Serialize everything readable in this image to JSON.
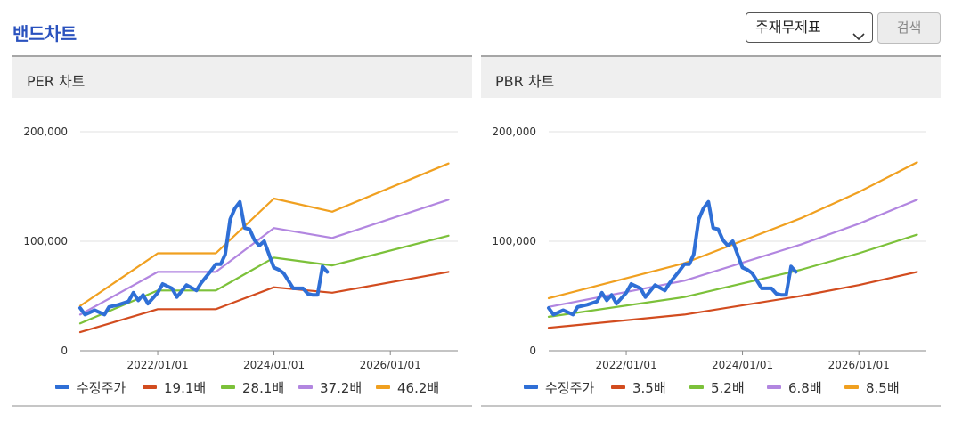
{
  "header": {
    "title": "밴드차트",
    "select_value": "주재무제표",
    "search_label": "검색"
  },
  "icons": {
    "select_chevron": "chevron-down-icon"
  },
  "colors": {
    "title": "#2a52be",
    "price": "#2f6fd6",
    "band1": "#d24c1f",
    "band2": "#7cc13a",
    "band3": "#b286e0",
    "band4": "#f0a020"
  },
  "chart_data": [
    {
      "id": "per",
      "panel_title": "PER 차트",
      "type": "line",
      "title": "",
      "xlabel": "",
      "ylabel": "",
      "xlim": [
        "2020/09/01",
        "2027/03/01"
      ],
      "ylim": [
        0,
        200000
      ],
      "yticks": [
        0,
        100000,
        200000
      ],
      "ytick_labels": [
        "0",
        "100,000",
        "200,000"
      ],
      "xticks": [
        "2022/01/01",
        "2024/01/01",
        "2026/01/01"
      ],
      "xtick_labels": [
        "2022/01/01",
        "2024/01/01",
        "2026/01/01"
      ],
      "grid": true,
      "legend_position": "bottom",
      "series": [
        {
          "name": "수정주가",
          "color": "#2f6fd6",
          "points": [
            [
              "2020/09/01",
              39000
            ],
            [
              "2020/10/01",
              33000
            ],
            [
              "2020/12/01",
              37000
            ],
            [
              "2021/02/01",
              33000
            ],
            [
              "2021/03/01",
              40000
            ],
            [
              "2021/05/01",
              42000
            ],
            [
              "2021/07/01",
              45000
            ],
            [
              "2021/08/01",
              53000
            ],
            [
              "2021/09/01",
              46000
            ],
            [
              "2021/10/01",
              51000
            ],
            [
              "2021/11/01",
              43000
            ],
            [
              "2022/01/01",
              53000
            ],
            [
              "2022/02/01",
              61000
            ],
            [
              "2022/04/01",
              57000
            ],
            [
              "2022/05/01",
              49000
            ],
            [
              "2022/07/01",
              60000
            ],
            [
              "2022/09/01",
              55000
            ],
            [
              "2022/10/01",
              62000
            ],
            [
              "2022/12/01",
              73000
            ],
            [
              "2023/01/01",
              79000
            ],
            [
              "2023/02/01",
              79000
            ],
            [
              "2023/03/01",
              88000
            ],
            [
              "2023/04/01",
              120000
            ],
            [
              "2023/05/01",
              130000
            ],
            [
              "2023/06/01",
              136000
            ],
            [
              "2023/07/01",
              112000
            ],
            [
              "2023/08/01",
              111000
            ],
            [
              "2023/09/01",
              101000
            ],
            [
              "2023/10/01",
              96000
            ],
            [
              "2023/11/01",
              100000
            ],
            [
              "2024/01/01",
              76000
            ],
            [
              "2024/02/01",
              74000
            ],
            [
              "2024/03/01",
              71000
            ],
            [
              "2024/04/01",
              64000
            ],
            [
              "2024/05/01",
              57000
            ],
            [
              "2024/06/01",
              57000
            ],
            [
              "2024/07/01",
              57000
            ],
            [
              "2024/08/01",
              52000
            ],
            [
              "2024/09/01",
              51000
            ],
            [
              "2024/10/01",
              51000
            ],
            [
              "2024/11/01",
              77000
            ],
            [
              "2024/12/01",
              72000
            ]
          ]
        },
        {
          "name": "19.1배",
          "color": "#d24c1f",
          "points": [
            [
              "2020/09/01",
              17000
            ],
            [
              "2022/01/01",
              38000
            ],
            [
              "2023/01/01",
              38000
            ],
            [
              "2024/01/01",
              58000
            ],
            [
              "2025/01/01",
              53000
            ],
            [
              "2027/01/01",
              72000
            ]
          ]
        },
        {
          "name": "28.1배",
          "color": "#7cc13a",
          "points": [
            [
              "2020/09/01",
              25000
            ],
            [
              "2022/01/01",
              55000
            ],
            [
              "2023/01/01",
              55000
            ],
            [
              "2024/01/01",
              85000
            ],
            [
              "2025/01/01",
              78000
            ],
            [
              "2027/01/01",
              105000
            ]
          ]
        },
        {
          "name": "37.2배",
          "color": "#b286e0",
          "points": [
            [
              "2020/09/01",
              33000
            ],
            [
              "2022/01/01",
              72000
            ],
            [
              "2023/01/01",
              72000
            ],
            [
              "2024/01/01",
              112000
            ],
            [
              "2025/01/01",
              103000
            ],
            [
              "2027/01/01",
              138000
            ]
          ]
        },
        {
          "name": "46.2배",
          "color": "#f0a020",
          "points": [
            [
              "2020/09/01",
              41000
            ],
            [
              "2022/01/01",
              89000
            ],
            [
              "2023/01/01",
              89000
            ],
            [
              "2024/01/01",
              139000
            ],
            [
              "2025/01/01",
              127000
            ],
            [
              "2027/01/01",
              171000
            ]
          ]
        }
      ]
    },
    {
      "id": "pbr",
      "panel_title": "PBR 차트",
      "type": "line",
      "title": "",
      "xlabel": "",
      "ylabel": "",
      "xlim": [
        "2020/09/01",
        "2027/03/01"
      ],
      "ylim": [
        0,
        200000
      ],
      "yticks": [
        0,
        100000,
        200000
      ],
      "ytick_labels": [
        "0",
        "100,000",
        "200,000"
      ],
      "xticks": [
        "2022/01/01",
        "2024/01/01",
        "2026/01/01"
      ],
      "xtick_labels": [
        "2022/01/01",
        "2024/01/01",
        "2026/01/01"
      ],
      "grid": true,
      "legend_position": "bottom",
      "series": [
        {
          "name": "수정주가",
          "color": "#2f6fd6",
          "points": [
            [
              "2020/09/01",
              39000
            ],
            [
              "2020/10/01",
              33000
            ],
            [
              "2020/12/01",
              37000
            ],
            [
              "2021/02/01",
              33000
            ],
            [
              "2021/03/01",
              40000
            ],
            [
              "2021/05/01",
              42000
            ],
            [
              "2021/07/01",
              45000
            ],
            [
              "2021/08/01",
              53000
            ],
            [
              "2021/09/01",
              46000
            ],
            [
              "2021/10/01",
              51000
            ],
            [
              "2021/11/01",
              43000
            ],
            [
              "2022/01/01",
              53000
            ],
            [
              "2022/02/01",
              61000
            ],
            [
              "2022/04/01",
              57000
            ],
            [
              "2022/05/01",
              49000
            ],
            [
              "2022/07/01",
              60000
            ],
            [
              "2022/09/01",
              55000
            ],
            [
              "2022/10/01",
              62000
            ],
            [
              "2022/12/01",
              73000
            ],
            [
              "2023/01/01",
              79000
            ],
            [
              "2023/02/01",
              79000
            ],
            [
              "2023/03/01",
              88000
            ],
            [
              "2023/04/01",
              120000
            ],
            [
              "2023/05/01",
              130000
            ],
            [
              "2023/06/01",
              136000
            ],
            [
              "2023/07/01",
              112000
            ],
            [
              "2023/08/01",
              111000
            ],
            [
              "2023/09/01",
              101000
            ],
            [
              "2023/10/01",
              96000
            ],
            [
              "2023/11/01",
              100000
            ],
            [
              "2024/01/01",
              76000
            ],
            [
              "2024/02/01",
              74000
            ],
            [
              "2024/03/01",
              71000
            ],
            [
              "2024/04/01",
              64000
            ],
            [
              "2024/05/01",
              57000
            ],
            [
              "2024/06/01",
              57000
            ],
            [
              "2024/07/01",
              57000
            ],
            [
              "2024/08/01",
              52000
            ],
            [
              "2024/09/01",
              51000
            ],
            [
              "2024/10/01",
              51000
            ],
            [
              "2024/11/01",
              77000
            ],
            [
              "2024/12/01",
              72000
            ]
          ]
        },
        {
          "name": "3.5배",
          "color": "#d24c1f",
          "points": [
            [
              "2020/09/01",
              21000
            ],
            [
              "2023/01/01",
              33000
            ],
            [
              "2025/01/01",
              50000
            ],
            [
              "2026/01/01",
              60000
            ],
            [
              "2027/01/01",
              72000
            ]
          ]
        },
        {
          "name": "5.2배",
          "color": "#7cc13a",
          "points": [
            [
              "2020/09/01",
              31000
            ],
            [
              "2023/01/01",
              49000
            ],
            [
              "2025/01/01",
              74000
            ],
            [
              "2026/01/01",
              89000
            ],
            [
              "2027/01/01",
              106000
            ]
          ]
        },
        {
          "name": "6.8배",
          "color": "#b286e0",
          "points": [
            [
              "2020/09/01",
              40000
            ],
            [
              "2023/01/01",
              64000
            ],
            [
              "2025/01/01",
              97000
            ],
            [
              "2026/01/01",
              116000
            ],
            [
              "2027/01/01",
              138000
            ]
          ]
        },
        {
          "name": "8.5배",
          "color": "#f0a020",
          "points": [
            [
              "2020/09/01",
              48000
            ],
            [
              "2023/01/01",
              80000
            ],
            [
              "2025/01/01",
              121000
            ],
            [
              "2026/01/01",
              145000
            ],
            [
              "2027/01/01",
              172000
            ]
          ]
        }
      ]
    }
  ]
}
